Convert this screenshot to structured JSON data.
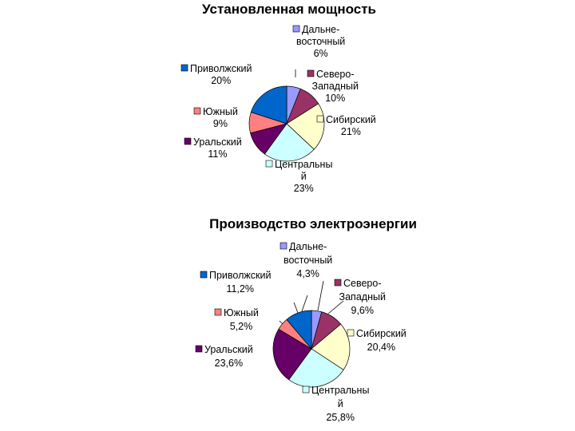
{
  "chart_data": [
    {
      "type": "pie",
      "title": "Установленная мощность",
      "series": [
        {
          "name": "Дальне-восточный",
          "label_lines": [
            "Дальне-",
            "восточный"
          ],
          "pct_text": "6%",
          "value": 6,
          "color": "#9999ff"
        },
        {
          "name": "Северо-Западный",
          "label_lines": [
            "Северо-",
            "Западный"
          ],
          "pct_text": "10%",
          "value": 10,
          "color": "#993366"
        },
        {
          "name": "Сибирский",
          "label_lines": [
            "Сибирский"
          ],
          "pct_text": "21%",
          "value": 21,
          "color": "#ffffcc"
        },
        {
          "name": "Центральный",
          "label_lines": [
            "Центральны",
            "й"
          ],
          "pct_text": "23%",
          "value": 23,
          "color": "#ccffff"
        },
        {
          "name": "Уральский",
          "label_lines": [
            "Уральский"
          ],
          "pct_text": "11%",
          "value": 11,
          "color": "#660066"
        },
        {
          "name": "Южный",
          "label_lines": [
            "Южный"
          ],
          "pct_text": "9%",
          "value": 9,
          "color": "#ff8080"
        },
        {
          "name": "Приволжский",
          "label_lines": [
            "Приволжский"
          ],
          "pct_text": "20%",
          "value": 20,
          "color": "#0066cc"
        }
      ]
    },
    {
      "type": "pie",
      "title": "Производство электроэнергии",
      "series": [
        {
          "name": "Дальне-восточный",
          "label_lines": [
            "Дальне-",
            "восточный"
          ],
          "pct_text": "4,3%",
          "value": 4.3,
          "color": "#9999ff"
        },
        {
          "name": "Северо-Западный",
          "label_lines": [
            "Северо-",
            "Западный"
          ],
          "pct_text": "9,6%",
          "value": 9.6,
          "color": "#993366"
        },
        {
          "name": "Сибирский",
          "label_lines": [
            "Сибирский"
          ],
          "pct_text": "20,4%",
          "value": 20.4,
          "color": "#ffffcc"
        },
        {
          "name": "Центральный",
          "label_lines": [
            "Центральны",
            "й"
          ],
          "pct_text": "25,8%",
          "value": 25.8,
          "color": "#ccffff"
        },
        {
          "name": "Уральский",
          "label_lines": [
            "Уральский"
          ],
          "pct_text": "23,6%",
          "value": 23.6,
          "color": "#660066"
        },
        {
          "name": "Южный",
          "label_lines": [
            "Южный"
          ],
          "pct_text": "5,2%",
          "value": 5.2,
          "color": "#ff8080"
        },
        {
          "name": "Приволжский",
          "label_lines": [
            "Приволжский"
          ],
          "pct_text": "11,2%",
          "value": 11.2,
          "color": "#0066cc"
        }
      ]
    }
  ]
}
